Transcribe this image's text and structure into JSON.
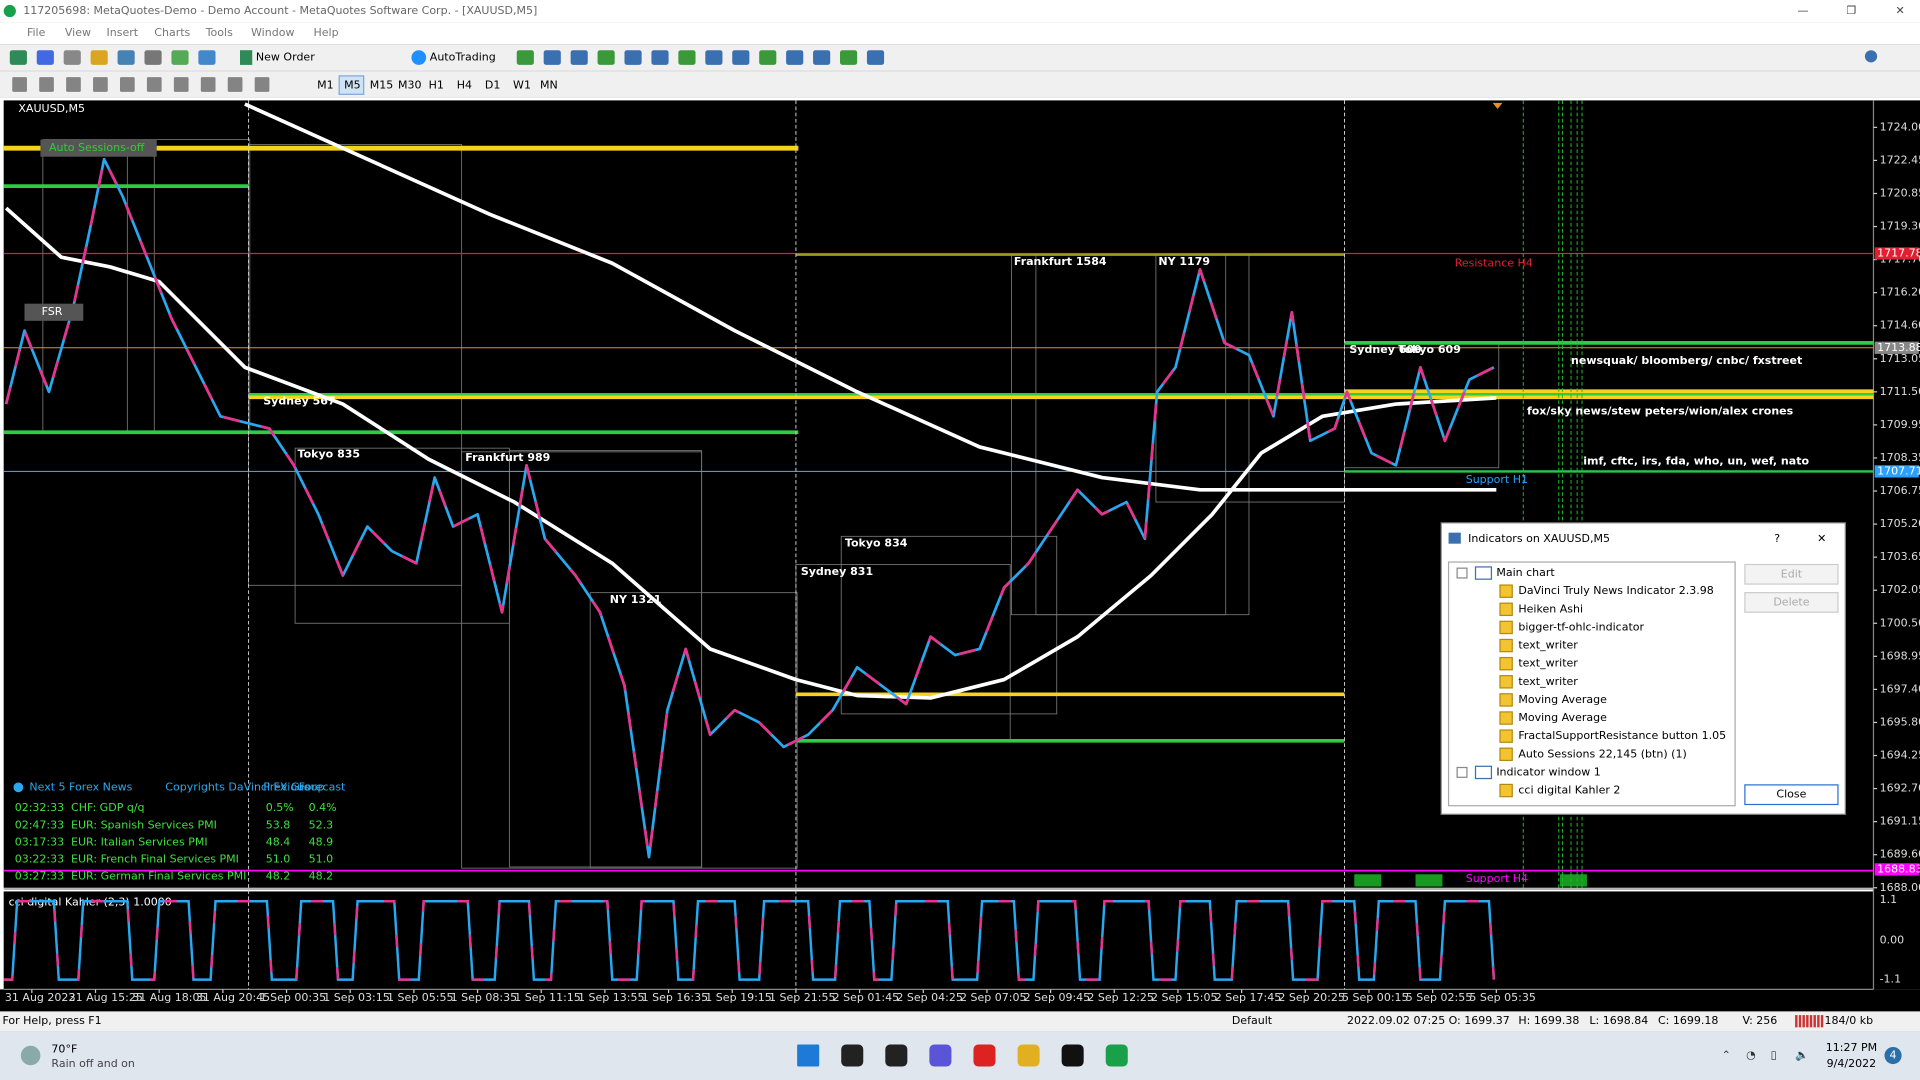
{
  "window": {
    "title": "117205698: MetaQuotes-Demo - Demo Account - MetaQuotes Software Corp. - [XAUUSD,M5]"
  },
  "menu": [
    "File",
    "View",
    "Insert",
    "Charts",
    "Tools",
    "Window",
    "Help"
  ],
  "toolbar": {
    "new_order": "New Order",
    "autotrading": "AutoTrading",
    "timeframes": [
      "M1",
      "M5",
      "M15",
      "M30",
      "H1",
      "H4",
      "D1",
      "W1",
      "MN"
    ]
  },
  "chart": {
    "symbol": "XAUUSD,M5",
    "labels": [
      "Auto Sessions-off",
      "FSR",
      "Sydney 567",
      "Tokyo 835",
      "Frankfurt 989",
      "NY 1321",
      "Tokyo 834",
      "Sydney 831",
      "Frankfurt 1584",
      "NY 1179",
      "Sydney 609",
      "Tokyo 609",
      "Resistance H4",
      "Support H1",
      "Support H4",
      "newsquak/ bloomberg/ cnbc/ fxstreet",
      "fox/sky news/stew peters/wion/alex crones",
      "imf, cftc, irs, fda, who, un, wef, nato"
    ],
    "price_axis": [
      "1724.00",
      "1722.45",
      "1720.85",
      "1719.30",
      "1717.70",
      "1716.20",
      "1714.60",
      "1713.05",
      "1711.50",
      "1709.95",
      "1708.35",
      "1706.75",
      "1705.20",
      "1703.65",
      "1702.05",
      "1700.50",
      "1698.95",
      "1697.40",
      "1695.80",
      "1694.25",
      "1692.70",
      "1691.15",
      "1689.60",
      "1688.00"
    ],
    "price_marks": [
      "1717.78",
      "1713.88",
      "1707.71",
      "1688.83"
    ],
    "time_axis": [
      "31 Aug 2022",
      "31 Aug 15:25",
      "31 Aug 18:05",
      "31 Aug 20:45",
      "1 Sep 00:35",
      "1 Sep 03:15",
      "1 Sep 05:55",
      "1 Sep 08:35",
      "1 Sep 11:15",
      "1 Sep 13:55",
      "1 Sep 16:35",
      "1 Sep 19:15",
      "1 Sep 21:55",
      "2 Sep 01:45",
      "2 Sep 04:25",
      "2 Sep 07:05",
      "2 Sep 09:45",
      "2 Sep 12:25",
      "2 Sep 15:05",
      "2 Sep 17:45",
      "2 Sep 20:25",
      "5 Sep 00:15",
      "5 Sep 02:55",
      "5 Sep 05:35"
    ]
  },
  "indicator": {
    "label": "cci digital Kahler (2,3) 1.0000",
    "ticks": [
      "1.1",
      "0.00",
      "-1.1"
    ]
  },
  "news": {
    "title": "Next 5 Forex News",
    "copyright": "Copyrights DaVinci FX Group",
    "columns": [
      "Previous",
      "Forecast"
    ],
    "rows": [
      [
        "02:32:33",
        "CHF: GDP q/q",
        "0.5%",
        "0.4%"
      ],
      [
        "02:47:33",
        "EUR: Spanish Services PMI",
        "53.8",
        "52.3"
      ],
      [
        "03:17:33",
        "EUR: Italian Services PMI",
        "48.4",
        "48.9"
      ],
      [
        "03:22:33",
        "EUR: French Final Services PMI",
        "51.0",
        "51.0"
      ],
      [
        "03:27:33",
        "EUR: German Final Services PMI",
        "48.2",
        "48.2"
      ]
    ]
  },
  "dialog": {
    "title": "Indicators on XAUUSD,M5",
    "help": "?",
    "tree": [
      {
        "label": "Main chart",
        "children": [
          "DaVinci Truly News Indicator 2.3.98",
          "Heiken Ashi",
          "bigger-tf-ohlc-indicator",
          "text_writer",
          "text_writer",
          "text_writer",
          "Moving Average",
          "Moving Average",
          "FractalSupportResistance button 1.05",
          "Auto Sessions 22,145 (btn) (1)"
        ]
      },
      {
        "label": "Indicator window 1",
        "children": [
          "cci digital Kahler 2"
        ]
      }
    ],
    "buttons": [
      "Edit",
      "Delete",
      "Close"
    ]
  },
  "status": {
    "help": "For Help, press F1",
    "profile": "Default",
    "datetime": "2022.09.02 07:25",
    "open": "O: 1699.37",
    "high": "H: 1699.38",
    "low": "L: 1698.84",
    "close": "C: 1699.18",
    "volume": "V: 256",
    "traffic": "184/0 kb"
  },
  "taskbar": {
    "weather_temp": "70°F",
    "weather_desc": "Rain off and on",
    "time": "11:27 PM",
    "date": "9/4/2022",
    "notifications": "4"
  }
}
